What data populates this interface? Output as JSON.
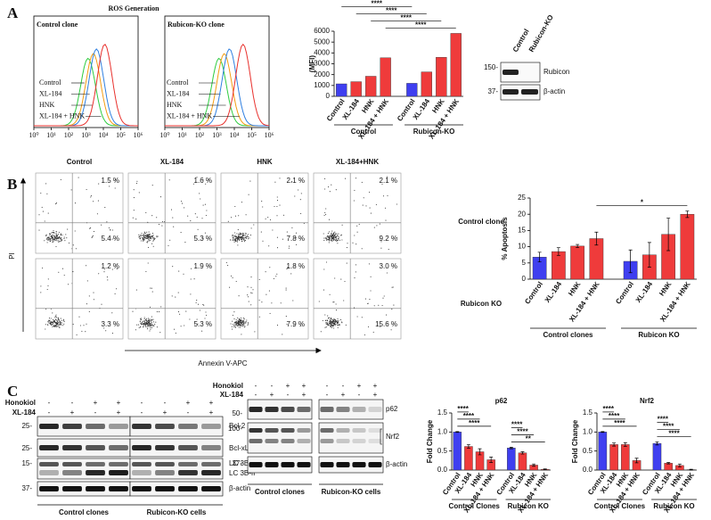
{
  "panel_labels": [
    "A",
    "B",
    "C"
  ],
  "ros": {
    "title": "ROS Generation",
    "panels": [
      "Control clone",
      "Rubicon-KO clone"
    ],
    "legend": [
      "Control",
      "XL-184",
      "HNK",
      "XL-184 + HNK"
    ],
    "xticks": [
      "10⁰",
      "10¹",
      "10²",
      "10³",
      "10⁴",
      "10⁵",
      "10⁶"
    ]
  },
  "western_a": {
    "lanes": [
      "Control",
      "Rubicon-KO"
    ],
    "bands": [
      "Rubicon",
      "β-actin"
    ],
    "markers": [
      "150-",
      "37-"
    ]
  },
  "apoptosis_plots": {
    "columns": [
      "Control",
      "XL-184",
      "HNK",
      "XL-184+HNK"
    ],
    "rows": [
      "Control clone",
      "Rubicon KO"
    ],
    "upper": [
      [
        "1.5 %",
        "1.6 %",
        "2.1 %",
        "2.1 %"
      ],
      [
        "1.2 %",
        "1.9 %",
        "1.8 %",
        "3.0 %"
      ]
    ],
    "lower": [
      [
        "5.4 %",
        "5.3 %",
        "7.8 %",
        "9.2 %"
      ],
      [
        "3.3 %",
        "5.3 %",
        "7.9 %",
        "15.6 %"
      ]
    ],
    "y_label": "PI",
    "x_label": "Annexin V-APC"
  },
  "western_c": {
    "treatments": [
      {
        "name": "Honokiol",
        "signs": [
          "-",
          "-",
          "+",
          "+",
          "-",
          "-",
          "+",
          "+"
        ]
      },
      {
        "name": "XL-184",
        "signs": [
          "-",
          "+",
          "-",
          "+",
          "-",
          "+",
          "-",
          "+"
        ]
      }
    ],
    "bands": [
      "Bcl-2",
      "Bcl-xL",
      "LC 3B-I",
      "LC 3B-II",
      "β-actin"
    ],
    "markers": [
      "25-",
      "25-",
      "15-",
      "37-"
    ],
    "groups": [
      "Control clones",
      "Rubicon-KO cells"
    ]
  },
  "western_c2": {
    "treatments": [
      {
        "name": "Honokiol",
        "signs": [
          "-",
          "-",
          "+",
          "+",
          "-",
          "-",
          "+",
          "+"
        ]
      },
      {
        "name": "XL-184",
        "signs": [
          "-",
          "+",
          "-",
          "+",
          "-",
          "+",
          "-",
          "+"
        ]
      }
    ],
    "bands": [
      "p62",
      "Nrf2",
      "β-actin"
    ],
    "markers": [
      "50-",
      "100-",
      "37-"
    ],
    "groups": [
      "Control clones",
      "Rubicon-KO cells"
    ]
  },
  "chart_data": [
    {
      "type": "bar",
      "y_label": "(MFI)",
      "categories": [
        "Control",
        "XL-184",
        "HNK",
        "XL-184 + HNK",
        "Control",
        "XL-184",
        "HNK",
        "XL-184 + HNK"
      ],
      "values": [
        1150,
        1350,
        1850,
        3550,
        1200,
        2250,
        3600,
        5800
      ],
      "colors": [
        "#3f3ff0",
        "#ef3b3b",
        "#ef3b3b",
        "#ef3b3b",
        "#3f3ff0",
        "#ef3b3b",
        "#ef3b3b",
        "#ef3b3b"
      ],
      "ylim": [
        0,
        6000
      ],
      "yticks": [
        0,
        1000,
        2000,
        3000,
        4000,
        5000,
        6000
      ],
      "groups": [
        "Control",
        "Rubicon-KO"
      ],
      "annotations": [
        "****",
        "****",
        "****",
        "****"
      ]
    },
    {
      "type": "bar",
      "y_label": "% Apoptosis",
      "categories": [
        "Control",
        "XL-184",
        "HNK",
        "XL-184 + HNK",
        "Control",
        "XL-184",
        "HNK",
        "XL-184 + HNK"
      ],
      "values": [
        6.8,
        8.5,
        10.2,
        12.5,
        5.5,
        7.5,
        13.8,
        20
      ],
      "errors": [
        1.5,
        1.2,
        0.5,
        2,
        3.5,
        3.8,
        5,
        1
      ],
      "colors": [
        "#3f3ff0",
        "#ef3b3b",
        "#ef3b3b",
        "#ef3b3b",
        "#3f3ff0",
        "#ef3b3b",
        "#ef3b3b",
        "#ef3b3b"
      ],
      "ylim": [
        0,
        25
      ],
      "yticks": [
        0,
        5,
        10,
        15,
        20,
        25
      ],
      "groups": [
        "Control clones",
        "Rubicon KO"
      ],
      "annotations": [
        "*"
      ]
    },
    {
      "type": "bar",
      "title": "p62",
      "y_label": "Fold Change",
      "categories": [
        "Control",
        "XL-184",
        "HNK",
        "XL-184 + HNK",
        "Control",
        "XL-184",
        "HNK",
        "XL-184 + HNK"
      ],
      "values": [
        1.0,
        0.62,
        0.48,
        0.27,
        0.58,
        0.45,
        0.13,
        0.02
      ],
      "errors": [
        0.01,
        0.05,
        0.08,
        0.07,
        0.02,
        0.03,
        0.03,
        0.01
      ],
      "colors": [
        "#3f3ff0",
        "#ef3b3b",
        "#ef3b3b",
        "#ef3b3b",
        "#3f3ff0",
        "#ef3b3b",
        "#ef3b3b",
        "#ef3b3b"
      ],
      "ylim": [
        0,
        1.5
      ],
      "yticks": [
        {
          "value": 0,
          "label": "0.0"
        },
        0.5,
        {
          "value": 1,
          "label": "1.0"
        },
        1.5
      ],
      "groups": [
        "Control Clones",
        "Rubicon KO"
      ],
      "annotations": [
        "****",
        "****",
        "****",
        "**",
        "****",
        "****"
      ]
    },
    {
      "type": "bar",
      "title": "Nrf2",
      "y_label": "Fold Change",
      "categories": [
        "Control",
        "XL-184",
        "HNK",
        "XL-184 + HNK",
        "Control",
        "XL-184",
        "HNK",
        "XL-184 + HNK"
      ],
      "values": [
        1.0,
        0.67,
        0.67,
        0.25,
        0.7,
        0.18,
        0.12,
        0.01
      ],
      "errors": [
        0.01,
        0.04,
        0.05,
        0.06,
        0.04,
        0.02,
        0.04,
        0.01
      ],
      "colors": [
        "#3f3ff0",
        "#ef3b3b",
        "#ef3b3b",
        "#ef3b3b",
        "#3f3ff0",
        "#ef3b3b",
        "#ef3b3b",
        "#ef3b3b"
      ],
      "ylim": [
        0,
        1.5
      ],
      "yticks": [
        {
          "value": 0,
          "label": "0.0"
        },
        0.5,
        {
          "value": 1,
          "label": "1.0"
        },
        1.5
      ],
      "groups": [
        "Control Clones",
        "Rubicon KO"
      ],
      "annotations": [
        "****",
        "****",
        "****",
        "****",
        "****",
        "****"
      ]
    }
  ]
}
